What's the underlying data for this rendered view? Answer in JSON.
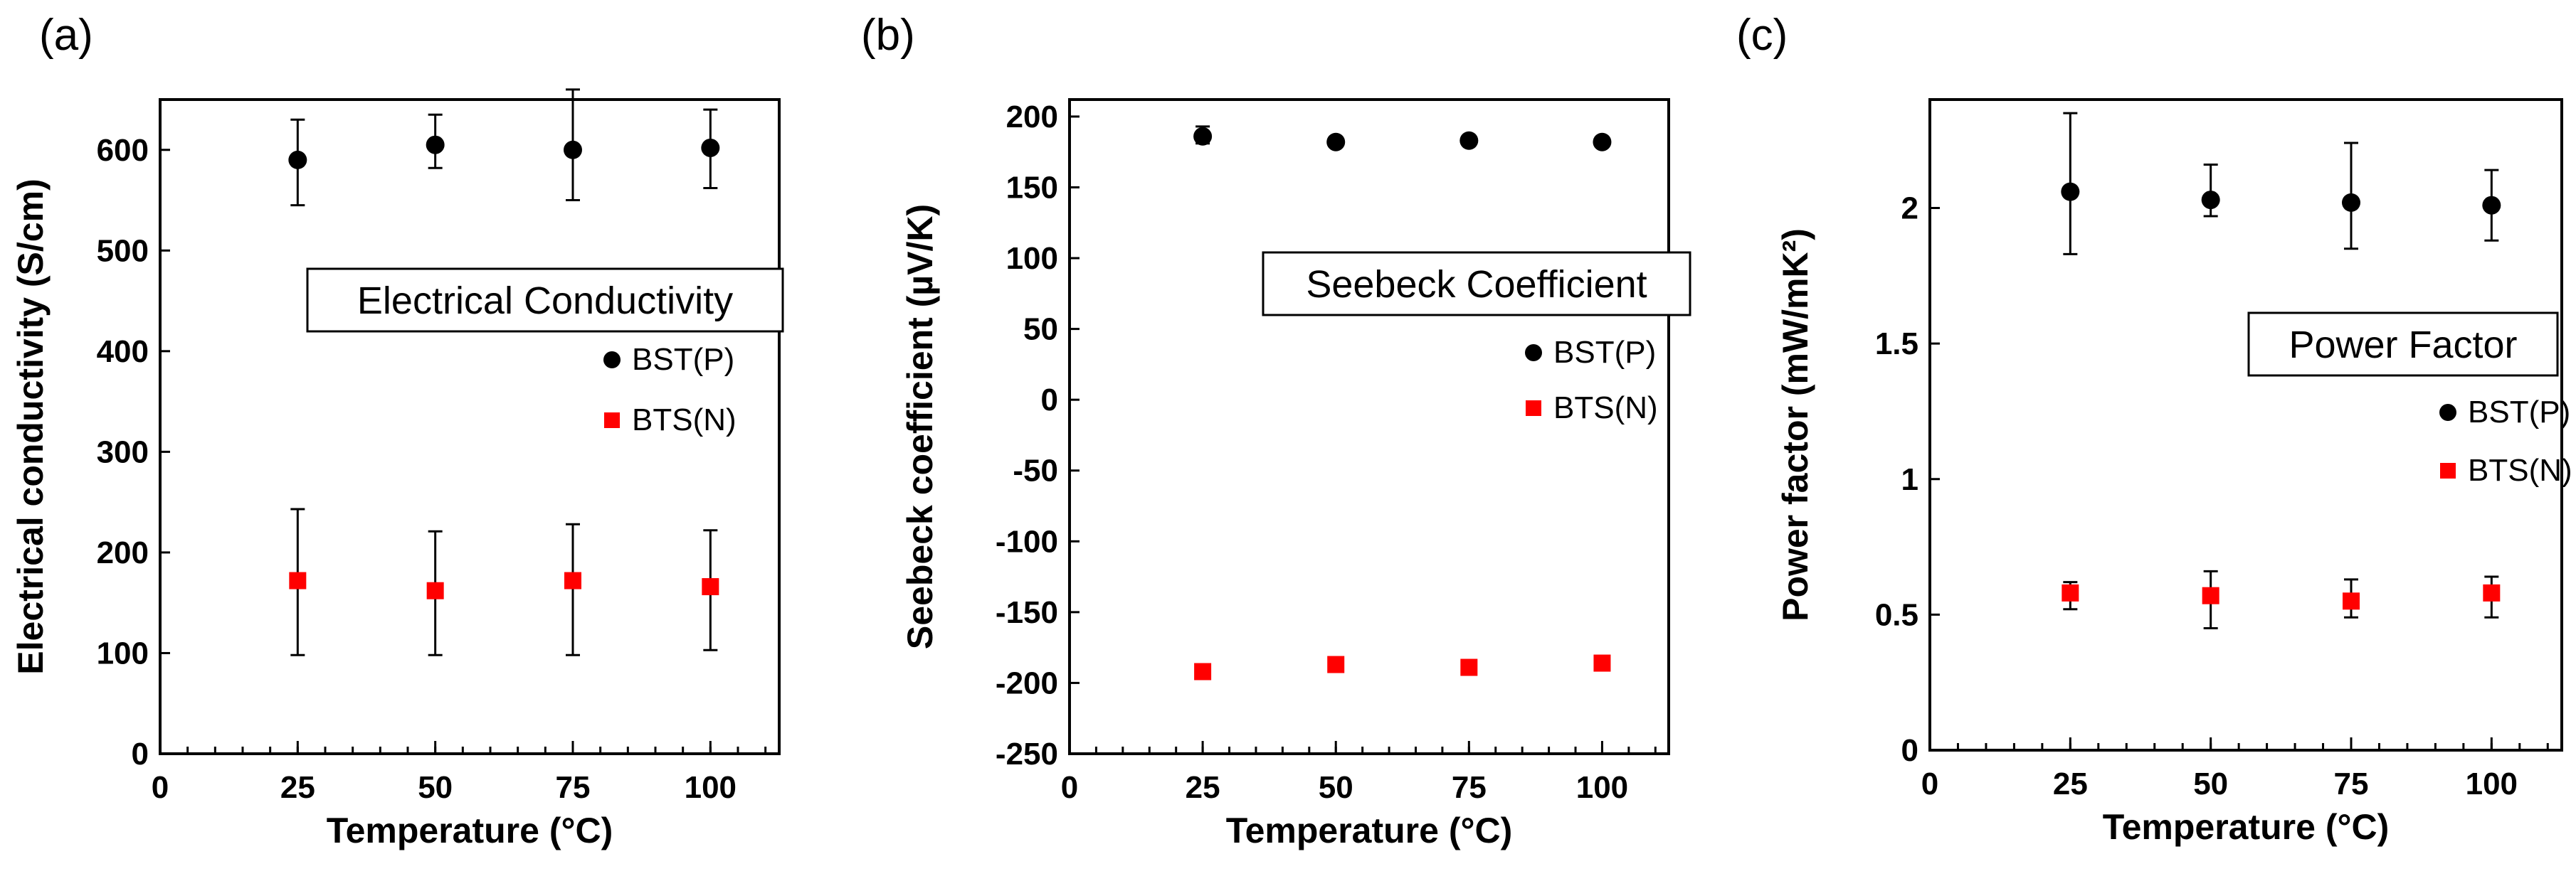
{
  "chart_data": [
    {
      "type": "scatter",
      "panel_label": "(a)",
      "title": "",
      "annotation": "Electrical Conductivity",
      "xlabel": "Temperature (°C)",
      "ylabel": "Electrical conductivity (S/cm)",
      "xlim": [
        0,
        112.5
      ],
      "ylim": [
        0,
        650
      ],
      "xticks": [
        0,
        25,
        50,
        75,
        100
      ],
      "xtick_labels": [
        "0",
        "25",
        "50",
        "75",
        "100"
      ],
      "yticks": [
        0,
        100,
        200,
        300,
        400,
        500,
        600
      ],
      "ytick_labels": [
        "0",
        "100",
        "200",
        "300",
        "400",
        "500",
        "600"
      ],
      "x": [
        25,
        50,
        75,
        100
      ],
      "series": [
        {
          "name": "BST(P)",
          "marker": "circle",
          "color": "#000000",
          "values": [
            590,
            605,
            600,
            602
          ],
          "err_low": [
            545,
            582,
            550,
            562
          ],
          "err_high": [
            630,
            635,
            660,
            640
          ]
        },
        {
          "name": "BTS(N)",
          "marker": "square",
          "color": "#ff0000",
          "values": [
            172,
            162,
            172,
            166
          ],
          "err_low": [
            98,
            98,
            98,
            103
          ],
          "err_high": [
            243,
            221,
            228,
            222
          ]
        }
      ]
    },
    {
      "type": "scatter",
      "panel_label": "(b)",
      "title": "",
      "annotation": "Seebeck Coefficient",
      "xlabel": "Temperature (°C)",
      "ylabel": "Seebeck coefficient (µV/K)",
      "xlim": [
        0,
        112.5
      ],
      "ylim": [
        -250,
        212
      ],
      "xticks": [
        0,
        25,
        50,
        75,
        100
      ],
      "xtick_labels": [
        "0",
        "25",
        "50",
        "75",
        "100"
      ],
      "yticks": [
        -250,
        -200,
        -150,
        -100,
        -50,
        0,
        50,
        100,
        150,
        200
      ],
      "ytick_labels": [
        "-250",
        "-200",
        "-150",
        "-100",
        "-50",
        "0",
        "50",
        "100",
        "150",
        "200"
      ],
      "x": [
        25,
        50,
        75,
        100
      ],
      "series": [
        {
          "name": "BST(P)",
          "marker": "circle",
          "color": "#000000",
          "values": [
            186,
            182,
            183,
            182
          ],
          "err_low": [
            181,
            180,
            181,
            180
          ],
          "err_high": [
            193,
            185,
            186,
            185
          ]
        },
        {
          "name": "BTS(N)",
          "marker": "square",
          "color": "#ff0000",
          "values": [
            -192,
            -187,
            -189,
            -186
          ],
          "err_low": [
            -195,
            -190,
            -192,
            -189
          ],
          "err_high": [
            -189,
            -184,
            -186,
            -183
          ]
        }
      ]
    },
    {
      "type": "scatter",
      "panel_label": "(c)",
      "title": "",
      "annotation": "Power Factor",
      "xlabel": "Temperature (°C)",
      "ylabel": "Power factor (mW/mK²)",
      "xlim": [
        0,
        112.5
      ],
      "ylim": [
        0,
        2.4
      ],
      "xticks": [
        0,
        25,
        50,
        75,
        100
      ],
      "xtick_labels": [
        "0",
        "25",
        "50",
        "75",
        "100"
      ],
      "yticks": [
        0,
        0.5,
        1,
        1.5,
        2
      ],
      "ytick_labels": [
        "0",
        "0.5",
        "1",
        "1.5",
        "2"
      ],
      "x": [
        25,
        50,
        75,
        100
      ],
      "series": [
        {
          "name": "BST(P)",
          "marker": "circle",
          "color": "#000000",
          "values": [
            2.06,
            2.03,
            2.02,
            2.01
          ],
          "err_low": [
            1.83,
            1.97,
            1.85,
            1.88
          ],
          "err_high": [
            2.35,
            2.16,
            2.24,
            2.14
          ]
        },
        {
          "name": "BTS(N)",
          "marker": "square",
          "color": "#ff0000",
          "values": [
            0.58,
            0.57,
            0.55,
            0.58
          ],
          "err_low": [
            0.52,
            0.45,
            0.49,
            0.49
          ],
          "err_high": [
            0.62,
            0.66,
            0.63,
            0.64
          ]
        }
      ]
    }
  ]
}
